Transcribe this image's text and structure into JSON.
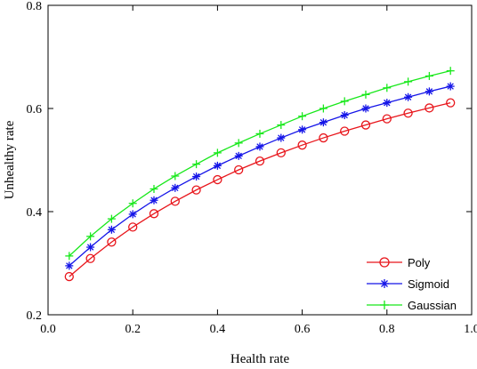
{
  "chart_data": {
    "type": "line",
    "xlabel": "Health rate",
    "ylabel": "Unhealthy rate",
    "xlim": [
      0,
      1
    ],
    "ylim": [
      0.2,
      0.8
    ],
    "x_ticks": [
      "0.0",
      "0.2",
      "0.4",
      "0.6",
      "0.8",
      "1.0"
    ],
    "y_ticks": [
      "0.2",
      "0.4",
      "0.6",
      "0.8"
    ],
    "grid": false,
    "legend_position": "bottom-right",
    "x": [
      0.05,
      0.1,
      0.15,
      0.2,
      0.25,
      0.3,
      0.35,
      0.4,
      0.45,
      0.5,
      0.55,
      0.6,
      0.65,
      0.7,
      0.75,
      0.8,
      0.85,
      0.9,
      0.95
    ],
    "series": [
      {
        "name": "Poly",
        "color": "#e8151b",
        "marker": "circle",
        "values": [
          0.274,
          0.309,
          0.341,
          0.37,
          0.396,
          0.42,
          0.442,
          0.462,
          0.481,
          0.498,
          0.514,
          0.529,
          0.543,
          0.556,
          0.568,
          0.58,
          0.591,
          0.601,
          0.611
        ]
      },
      {
        "name": "Sigmoid",
        "color": "#1515e8",
        "marker": "asterisk",
        "values": [
          0.295,
          0.331,
          0.365,
          0.395,
          0.422,
          0.446,
          0.468,
          0.489,
          0.508,
          0.526,
          0.543,
          0.559,
          0.573,
          0.587,
          0.6,
          0.611,
          0.622,
          0.633,
          0.643
        ]
      },
      {
        "name": "Gaussian",
        "color": "#18e81b",
        "marker": "plus",
        "values": [
          0.314,
          0.352,
          0.386,
          0.416,
          0.444,
          0.469,
          0.492,
          0.514,
          0.533,
          0.551,
          0.568,
          0.585,
          0.6,
          0.614,
          0.627,
          0.64,
          0.652,
          0.663,
          0.673
        ]
      }
    ]
  }
}
